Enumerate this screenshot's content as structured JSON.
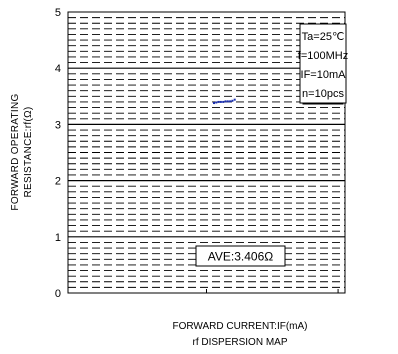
{
  "chart_data": {
    "type": "scatter",
    "title": "",
    "caption": "rf DISPERSION MAP",
    "xlabel": "FORWARD CURRENT:IF(mA)",
    "ylabel_lines": [
      "FORWARD OPERATING",
      "RESISTANCE:rf(Ω)"
    ],
    "ylim": [
      0,
      5
    ],
    "y_ticks": [
      "0",
      "1",
      "2",
      "3",
      "4",
      "5"
    ],
    "conditions": [
      "Ta=25℃",
      "f=100MHz",
      "IF=10mA",
      "n=10pcs"
    ],
    "average_label": "AVE:3.406Ω",
    "average": 3.406,
    "points": [
      3.38,
      3.39,
      3.4,
      3.4,
      3.4,
      3.41,
      3.41,
      3.41,
      3.42,
      3.44
    ],
    "grid": "dashed",
    "point_color": "#1a2fb0"
  }
}
